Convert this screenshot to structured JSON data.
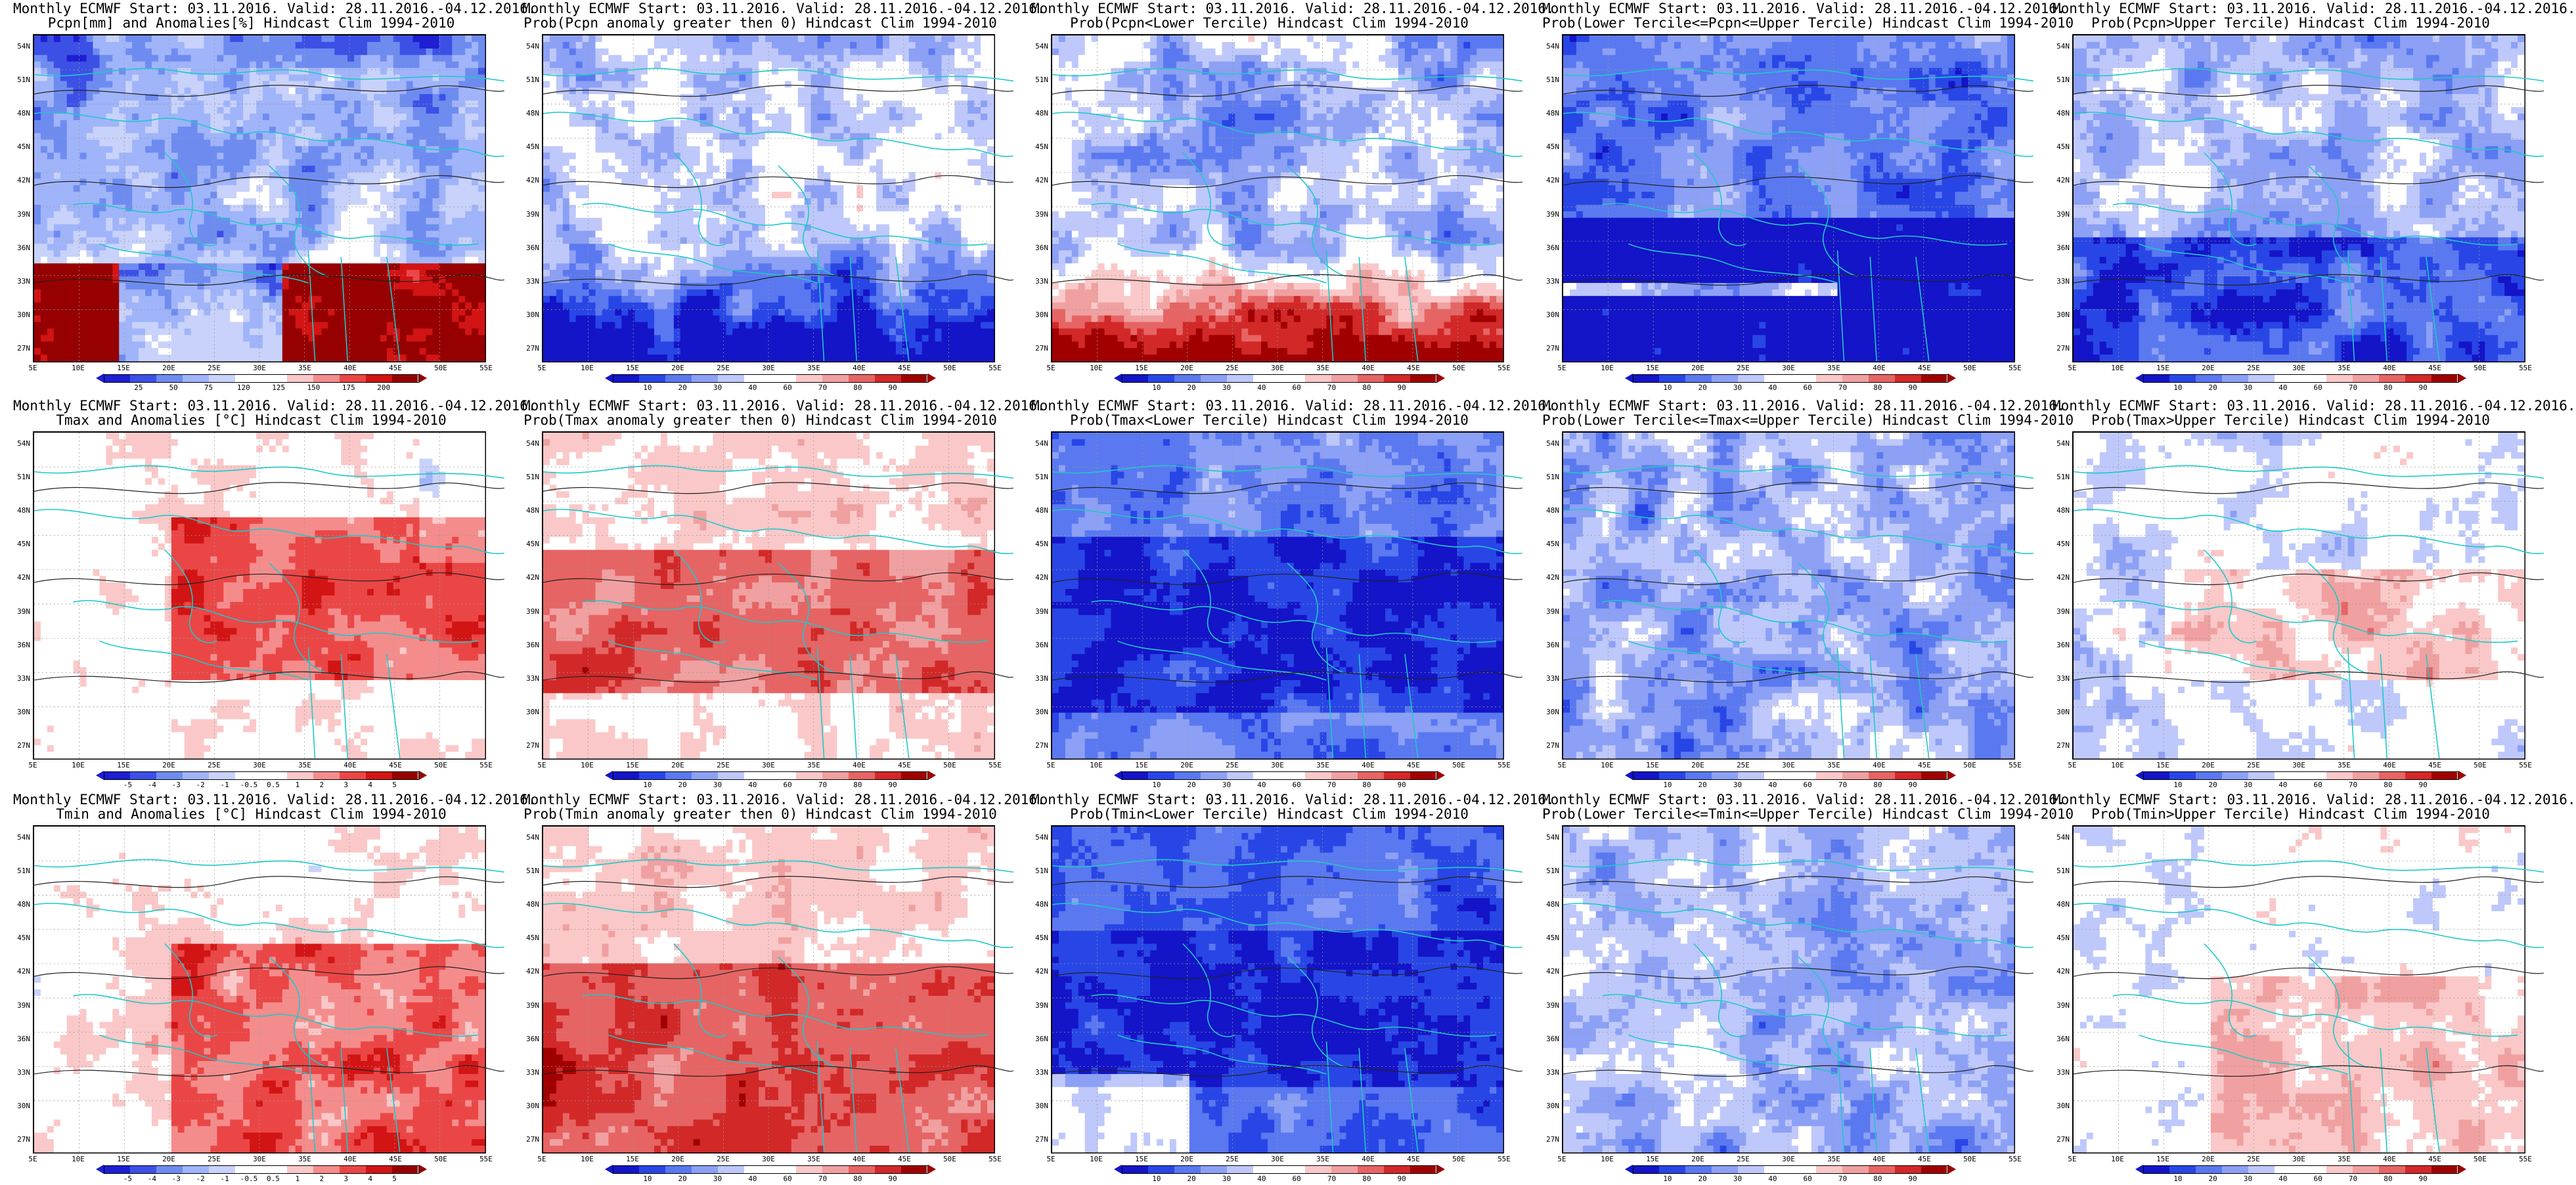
{
  "lat_labels": [
    "54N",
    "51N",
    "48N",
    "45N",
    "42N",
    "39N",
    "36N",
    "33N",
    "30N",
    "27N"
  ],
  "lon_labels": [
    "5E",
    "10E",
    "15E",
    "20E",
    "25E",
    "30E",
    "35E",
    "40E",
    "45E",
    "50E",
    "55E"
  ],
  "palettes": {
    "pcpn": [
      "#1e1ed2",
      "#3c50e6",
      "#6e8cf0",
      "#a0b4fa",
      "#c8d2fa",
      "#ffffff",
      "#ffffff",
      "#fac8c8",
      "#f58c8c",
      "#eb4646",
      "#d21414",
      "#960000"
    ],
    "prob": [
      "#1414c8",
      "#2846e6",
      "#5a78f0",
      "#8ca0f5",
      "#bec8fa",
      "#ffffff",
      "#ffffff",
      "#fac8c8",
      "#f0a0a0",
      "#e66464",
      "#d22828",
      "#a00000"
    ]
  },
  "colorbar_ticks": {
    "pcpn": [
      "25",
      "50",
      "75",
      "120",
      "125",
      "150",
      "175",
      "200"
    ],
    "anom": [
      "-5",
      "-4",
      "-3",
      "-2",
      "-1",
      "-0.5",
      "0.5",
      "1",
      "2",
      "3",
      "4",
      "5"
    ],
    "prob": [
      "10",
      "20",
      "30",
      "40",
      "60",
      "70",
      "80",
      "90"
    ]
  },
  "panels": [
    {
      "line1": "Monthly ECMWF Start: 03.11.2016. Valid: 28.11.2016.-04.12.2016.",
      "line2": "Pcpn[mm] and Anomalies[%]",
      "line3": " Hindcast Clim 1994-2010",
      "bar": "pcpn",
      "field": "pcpn_anom"
    },
    {
      "line1": "Monthly ECMWF Start: 03.11.2016. Valid: 28.11.2016.-04.12.2016.",
      "line2": "Prob(Pcpn anomaly greater then 0)",
      "line3": " Hindcast Clim 1994-2010",
      "bar": "prob",
      "field": "pcpn_gt0"
    },
    {
      "line1": "Monthly ECMWF Start: 03.11.2016. Valid: 28.11.2016.-04.12.2016.",
      "line2": "Prob(Pcpn<Lower Tercile)",
      "line3": " Hindcast Clim 1994-2010",
      "bar": "prob",
      "field": "pcpn_lower"
    },
    {
      "line1": "Monthly ECMWF Start: 03.11.2016. Valid: 28.11.2016.-04.12.2016.",
      "line2": "Prob(Lower Tercile<=Pcpn<=Upper Tercile)",
      "line3": " Hindcast Clim 1994-2010",
      "bar": "prob",
      "field": "pcpn_mid"
    },
    {
      "line1": "Monthly ECMWF Start: 03.11.2016. Valid: 28.11.2016.-04.12.2016.",
      "line2": "Prob(Pcpn>Upper Tercile)",
      "line3": " Hindcast Clim 1994-2010",
      "bar": "prob",
      "field": "pcpn_upper"
    },
    {
      "line1": "Monthly ECMWF Start: 03.11.2016. Valid: 28.11.2016.-04.12.2016.",
      "line2": "Tmax and Anomalies [°C]",
      "line3": " Hindcast Clim 1994-2010",
      "bar": "anom",
      "field": "tmax_anom"
    },
    {
      "line1": "Monthly ECMWF Start: 03.11.2016. Valid: 28.11.2016.-04.12.2016.",
      "line2": "Prob(Tmax anomaly greater then 0)",
      "line3": " Hindcast Clim 1994-2010",
      "bar": "prob",
      "field": "tmax_gt0"
    },
    {
      "line1": "Monthly ECMWF Start: 03.11.2016. Valid: 28.11.2016.-04.12.2016.",
      "line2": "Prob(Tmax<Lower Tercile)",
      "line3": " Hindcast Clim 1994-2010",
      "bar": "prob",
      "field": "tmax_lower"
    },
    {
      "line1": "Monthly ECMWF Start: 03.11.2016. Valid: 28.11.2016.-04.12.2016.",
      "line2": "Prob(Lower Tercile<=Tmax<=Upper Tercile)",
      "line3": " Hindcast Clim 1994-2010",
      "bar": "prob",
      "field": "tmax_mid"
    },
    {
      "line1": "Monthly ECMWF Start: 03.11.2016. Valid: 28.11.2016.-04.12.2016.",
      "line2": "Prob(Tmax>Upper Tercile)",
      "line3": " Hindcast Clim 1994-2010",
      "bar": "prob",
      "field": "tmax_upper"
    },
    {
      "line1": "Monthly ECMWF Start: 03.11.2016. Valid: 28.11.2016.-04.12.2016.",
      "line2": "Tmin and Anomalies [°C]",
      "line3": " Hindcast Clim 1994-2010",
      "bar": "anom",
      "field": "tmin_anom"
    },
    {
      "line1": "Monthly ECMWF Start: 03.11.2016. Valid: 28.11.2016.-04.12.2016.",
      "line2": "Prob(Tmin anomaly greater then 0)",
      "line3": " Hindcast Clim 1994-2010",
      "bar": "prob",
      "field": "tmin_gt0"
    },
    {
      "line1": "Monthly ECMWF Start: 03.11.2016. Valid: 28.11.2016.-04.12.2016.",
      "line2": "Prob(Tmin<Lower Tercile)",
      "line3": " Hindcast Clim 1994-2010",
      "bar": "prob",
      "field": "tmin_lower"
    },
    {
      "line1": "Monthly ECMWF Start: 03.11.2016. Valid: 28.11.2016.-04.12.2016.",
      "line2": "Prob(Lower Tercile<=Tmin<=Upper Tercile)",
      "line3": " Hindcast Clim 1994-2010",
      "bar": "prob",
      "field": "tmin_mid"
    },
    {
      "line1": "Monthly ECMWF Start: 03.11.2016. Valid: 28.11.2016.-04.12.2016.",
      "line2": "Prob(Tmin>Upper Tercile)",
      "line3": " Hindcast Clim 1994-2010",
      "bar": "prob",
      "field": "tmin_upper"
    }
  ]
}
